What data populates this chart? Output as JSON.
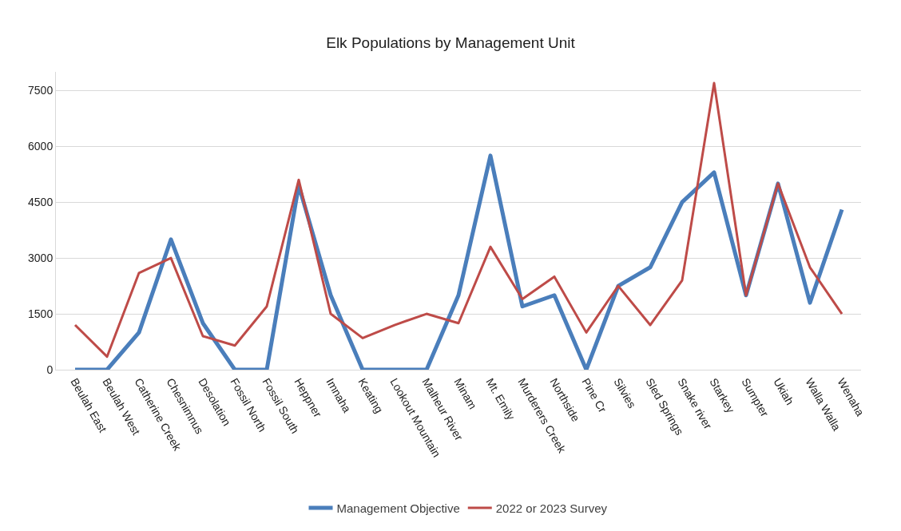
{
  "chart_data": {
    "type": "line",
    "title": "Elk Populations by Management Unit",
    "categories": [
      "Beulah East",
      "Beulah West",
      "Catherine Creek",
      "Chesnimnus",
      "Desolation",
      "Fossil North",
      "Fossil South",
      "Heppner",
      "Imnaha",
      "Keating",
      "Lookout Mountain",
      "Malheur River",
      "Minam",
      "Mt. Emily",
      "Murderers Creek",
      "Northside",
      "Pine Cr",
      "Silvies",
      "Sled Springs",
      "Snake river",
      "Starkey",
      "Sumpter",
      "Ukiah",
      "Walla Walla",
      "Wenaha"
    ],
    "series": [
      {
        "name": "Management Objective",
        "color": "#4a7ebb",
        "values": [
          0,
          0,
          1000,
          3500,
          1250,
          0,
          0,
          4950,
          2000,
          0,
          0,
          0,
          2000,
          5750,
          1700,
          2000,
          0,
          2250,
          2750,
          4500,
          5300,
          2000,
          5000,
          1800,
          4300
        ]
      },
      {
        "name": "2022 or 2023 Survey",
        "color": "#be4b48",
        "values": [
          1200,
          350,
          2600,
          3000,
          900,
          650,
          1700,
          5100,
          1500,
          850,
          1200,
          1500,
          1250,
          3300,
          1900,
          2500,
          1000,
          2250,
          1200,
          2400,
          7700,
          2000,
          5000,
          2750,
          1500
        ]
      }
    ],
    "ylim": [
      0,
      8000
    ],
    "yticks": [
      0,
      1500,
      3000,
      4500,
      6000,
      7500
    ],
    "grid": "y",
    "legend": "bottom",
    "marker": "none",
    "line_style": "solid"
  }
}
